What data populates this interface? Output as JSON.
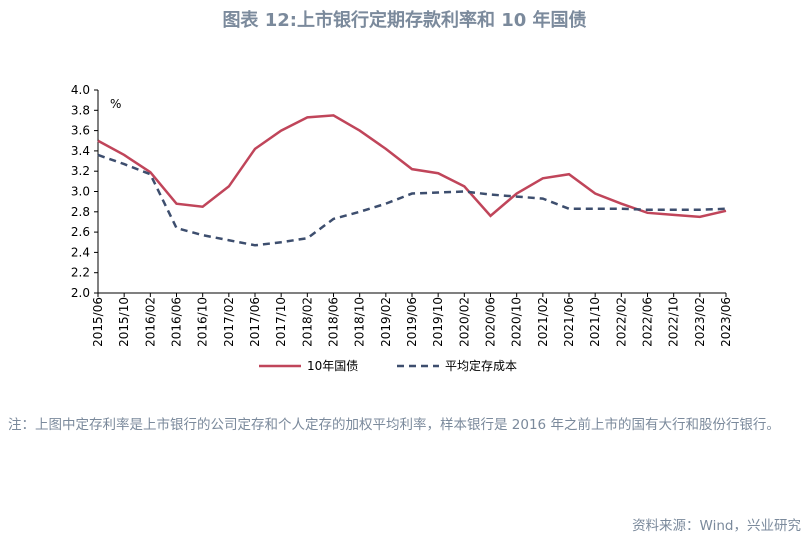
{
  "chart_data": {
    "type": "line",
    "title": "图表 12:上市银行定期存款利率和 10 年国债",
    "unit_label": "%",
    "categories": [
      "2015/06",
      "2015/10",
      "2016/02",
      "2016/06",
      "2016/10",
      "2017/02",
      "2017/06",
      "2017/10",
      "2018/02",
      "2018/06",
      "2018/10",
      "2019/02",
      "2019/06",
      "2019/10",
      "2020/02",
      "2020/06",
      "2020/10",
      "2021/02",
      "2021/06",
      "2021/10",
      "2022/02",
      "2022/06",
      "2022/10",
      "2023/02",
      "2023/06"
    ],
    "series": [
      {
        "name": "10年国债",
        "color": "#c0455a",
        "dash": false,
        "values": [
          3.5,
          3.36,
          3.19,
          2.88,
          2.85,
          3.05,
          3.42,
          3.6,
          3.73,
          3.75,
          3.6,
          3.42,
          3.22,
          3.18,
          3.05,
          2.76,
          2.98,
          3.13,
          3.17,
          2.98,
          2.88,
          2.79,
          2.77,
          2.75,
          2.81
        ]
      },
      {
        "name": "平均定存成本",
        "color": "#3d4e6e",
        "dash": true,
        "values": [
          3.36,
          3.27,
          3.17,
          2.64,
          2.57,
          2.52,
          2.47,
          2.5,
          2.54,
          2.73,
          2.8,
          2.88,
          2.98,
          2.99,
          3.0,
          2.97,
          2.95,
          2.93,
          2.83,
          2.83,
          2.83,
          2.82,
          2.82,
          2.82,
          2.83
        ]
      }
    ],
    "ylim": [
      2.0,
      4.0
    ],
    "yticks": [
      {
        "value": 2.0,
        "label": "2.0"
      },
      {
        "value": 2.2,
        "label": "2.2"
      },
      {
        "value": 2.4,
        "label": "2.4"
      },
      {
        "value": 2.6,
        "label": "2.6"
      },
      {
        "value": 2.8,
        "label": "2.8"
      },
      {
        "value": 3.0,
        "label": "3.0"
      },
      {
        "value": 3.2,
        "label": "3.2"
      },
      {
        "value": 3.4,
        "label": "3.4"
      },
      {
        "value": 3.6,
        "label": "3.6"
      },
      {
        "value": 3.8,
        "label": "3.8"
      },
      {
        "value": 4.0,
        "label": "4.0"
      }
    ],
    "grid": false,
    "legend": "bottom"
  },
  "note": "注：上图中定存利率是上市银行的公司定存和个人定存的加权平均利率，样本银行是 2016 年之前上市的国有大行和股份行银行。",
  "source": "资料来源：Wind，兴业研究"
}
